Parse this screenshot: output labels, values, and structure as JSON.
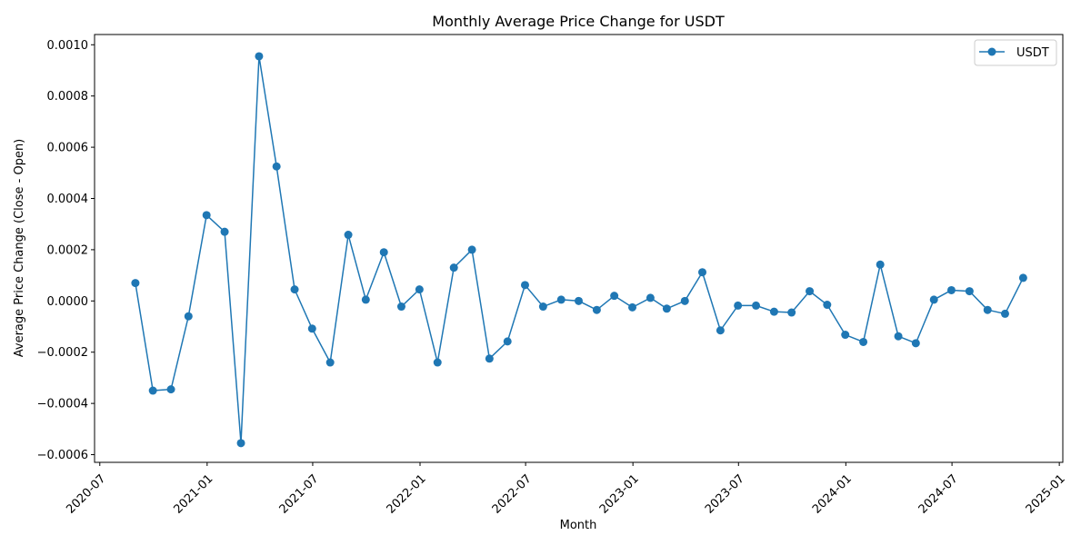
{
  "chart_data": {
    "type": "line",
    "title": "Monthly Average Price Change for USDT",
    "xlabel": "Month",
    "ylabel": "Average Price Change (Close - Open)",
    "x_type": "date",
    "xlim": [
      "2020-06-22",
      "2025-01-07"
    ],
    "ylim": [
      -0.00063,
      0.00104
    ],
    "grid": false,
    "legend_position": "top-right",
    "color": "#1f77b4",
    "x_ticks": [
      "2020-07",
      "2021-01",
      "2021-07",
      "2022-01",
      "2022-07",
      "2023-01",
      "2023-07",
      "2024-01",
      "2024-07",
      "2025-01"
    ],
    "y_ticks": [
      "−0.0006",
      "−0.0004",
      "−0.0002",
      "0.0000",
      "0.0002",
      "0.0004",
      "0.0006",
      "0.0008",
      "0.0010"
    ],
    "series": [
      {
        "name": "USDT",
        "x": [
          "2020-08-31",
          "2020-09-30",
          "2020-10-31",
          "2020-11-30",
          "2020-12-31",
          "2021-01-31",
          "2021-02-28",
          "2021-03-31",
          "2021-04-30",
          "2021-05-31",
          "2021-06-30",
          "2021-07-31",
          "2021-08-31",
          "2021-09-30",
          "2021-10-31",
          "2021-11-30",
          "2021-12-31",
          "2022-01-31",
          "2022-02-28",
          "2022-03-31",
          "2022-04-30",
          "2022-05-31",
          "2022-06-30",
          "2022-07-31",
          "2022-08-31",
          "2022-09-30",
          "2022-10-31",
          "2022-11-30",
          "2022-12-31",
          "2023-01-31",
          "2023-02-28",
          "2023-03-31",
          "2023-04-30",
          "2023-05-31",
          "2023-06-30",
          "2023-07-31",
          "2023-08-31",
          "2023-09-30",
          "2023-10-31",
          "2023-11-30",
          "2023-12-31",
          "2024-01-31",
          "2024-02-29",
          "2024-03-31",
          "2024-04-30",
          "2024-05-31",
          "2024-06-30",
          "2024-07-31",
          "2024-08-31",
          "2024-09-30",
          "2024-10-31"
        ],
        "y": [
          7e-05,
          -0.00035,
          -0.000345,
          -6e-05,
          0.000335,
          0.00027,
          -0.000555,
          0.000955,
          0.000525,
          4.5e-05,
          -0.000108,
          -0.00024,
          0.000258,
          5e-06,
          0.00019,
          -2.2e-05,
          4.5e-05,
          -0.00024,
          0.00013,
          0.0002,
          -0.000225,
          -0.000158,
          6.2e-05,
          -2.2e-05,
          5e-06,
          0.0,
          -3.5e-05,
          2e-05,
          -2.5e-05,
          1.2e-05,
          -3e-05,
          0.0,
          0.000112,
          -0.000115,
          -1.8e-05,
          -1.8e-05,
          -4.2e-05,
          -4.5e-05,
          3.8e-05,
          -1.5e-05,
          -0.000132,
          -0.00016,
          0.000142,
          -0.000138,
          -0.000165,
          5e-06,
          4.2e-05,
          3.8e-05,
          -3.5e-05,
          -5e-05,
          9e-05
        ]
      }
    ]
  }
}
